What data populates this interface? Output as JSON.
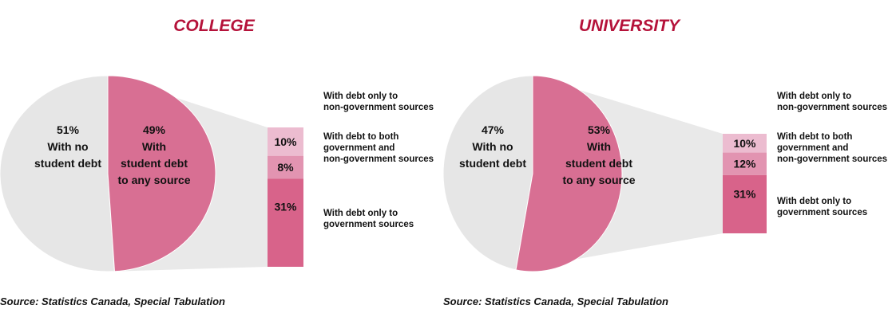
{
  "colors": {
    "title": "#b5123a",
    "no_debt": "#e6e6e6",
    "with_debt": "#d86f93",
    "seg_nongov": "#ecbcd0",
    "seg_both": "#e294b1",
    "seg_gov": "#d8638a",
    "connector": "#e9e9e9",
    "outline": "#ffffff"
  },
  "chart_data": [
    {
      "type": "pie",
      "title": "COLLEGE",
      "slices": [
        {
          "label_lines": [
            "51%",
            "With no",
            "student debt"
          ],
          "value": 51
        },
        {
          "label_lines": [
            "49%",
            "With",
            "student debt",
            "to any source"
          ],
          "value": 49
        }
      ],
      "breakdown": {
        "type": "stacked-bar",
        "segments": [
          {
            "value": 10,
            "label": "10%",
            "note_lines": [
              "With debt only to",
              "non-government sources"
            ]
          },
          {
            "value": 8,
            "label": "8%",
            "note_lines": [
              "With debt to both",
              "government and",
              "non-government sources"
            ]
          },
          {
            "value": 31,
            "label": "31%",
            "note_lines": [
              "With debt only to",
              "government sources"
            ]
          }
        ]
      },
      "source": "Source: Statistics Canada, Special Tabulation"
    },
    {
      "type": "pie",
      "title": "UNIVERSITY",
      "slices": [
        {
          "label_lines": [
            "47%",
            "With no",
            "student debt"
          ],
          "value": 47
        },
        {
          "label_lines": [
            "53%",
            "With",
            "student debt",
            "to any source"
          ],
          "value": 53
        }
      ],
      "breakdown": {
        "type": "stacked-bar",
        "segments": [
          {
            "value": 10,
            "label": "10%",
            "note_lines": [
              "With debt only to",
              "non-government sources"
            ]
          },
          {
            "value": 12,
            "label": "12%",
            "note_lines": [
              "With debt to both",
              "government and",
              "non-government sources"
            ]
          },
          {
            "value": 31,
            "label": "31%",
            "note_lines": [
              "With debt only to",
              "government sources"
            ]
          }
        ]
      },
      "source": "Source: Statistics Canada, Special Tabulation"
    }
  ]
}
